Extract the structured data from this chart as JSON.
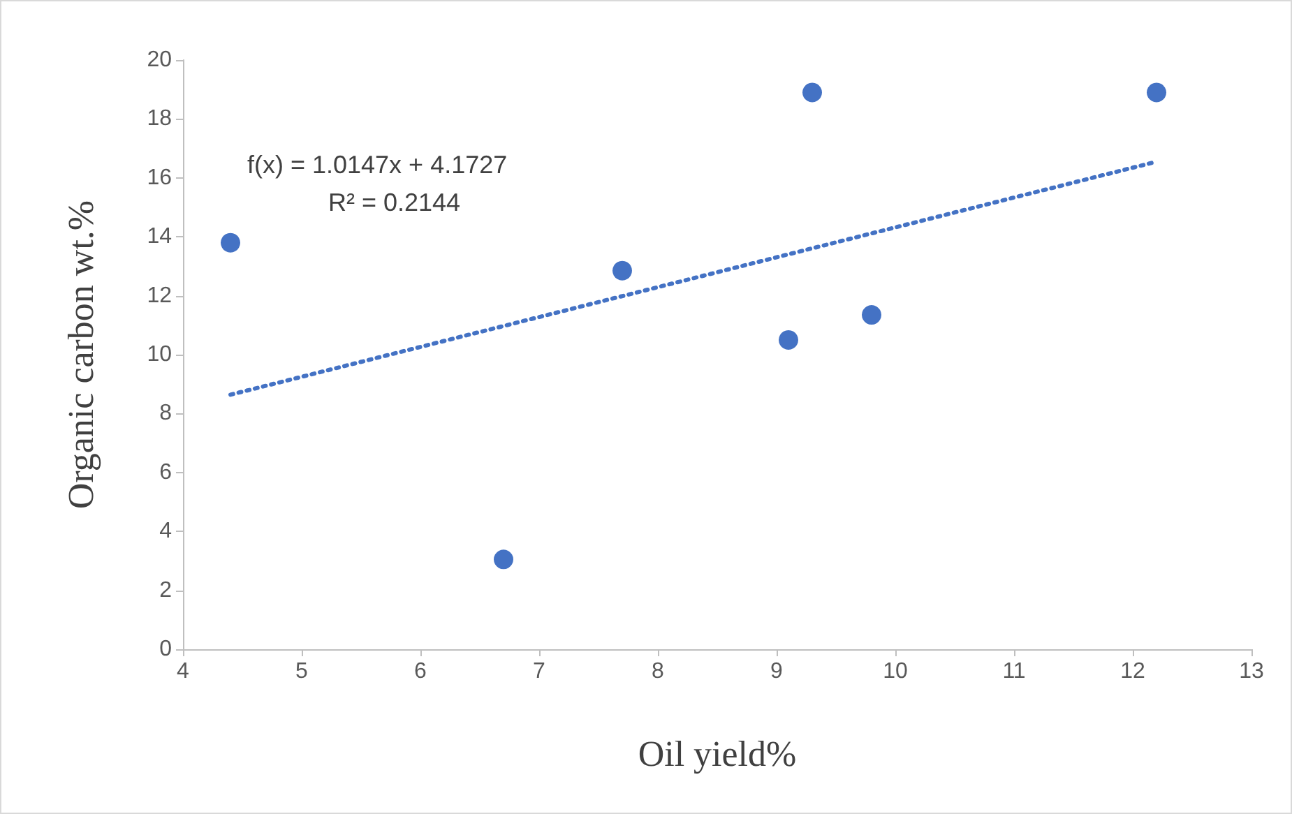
{
  "chart_data": {
    "type": "scatter",
    "xlabel": "Oil yield%",
    "ylabel": "Organic carbon wt.%",
    "annotations": [
      "f(x) = 1.0147x + 4.1727",
      "R² = 0.2144"
    ],
    "xlim": [
      4,
      13
    ],
    "xticks": [
      4,
      5,
      6,
      7,
      8,
      9,
      10,
      11,
      12,
      13
    ],
    "ylim": [
      0,
      20
    ],
    "yticks": [
      0,
      2,
      4,
      6,
      8,
      10,
      12,
      14,
      16,
      18,
      20
    ],
    "grid": false,
    "marker": "circle",
    "series": [
      {
        "color": "#4472c4",
        "x": [
          4.4,
          6.7,
          7.7,
          9.1,
          9.3,
          9.8,
          12.2
        ],
        "values": [
          13.8,
          3.05,
          12.85,
          10.5,
          18.9,
          11.35,
          18.9
        ]
      },
      {
        "type": "line",
        "color": "#4472c4",
        "line_style": "dotted",
        "marker": "none",
        "x": [
          4.4,
          12.2
        ],
        "values": [
          8.64,
          16.55
        ]
      }
    ]
  }
}
